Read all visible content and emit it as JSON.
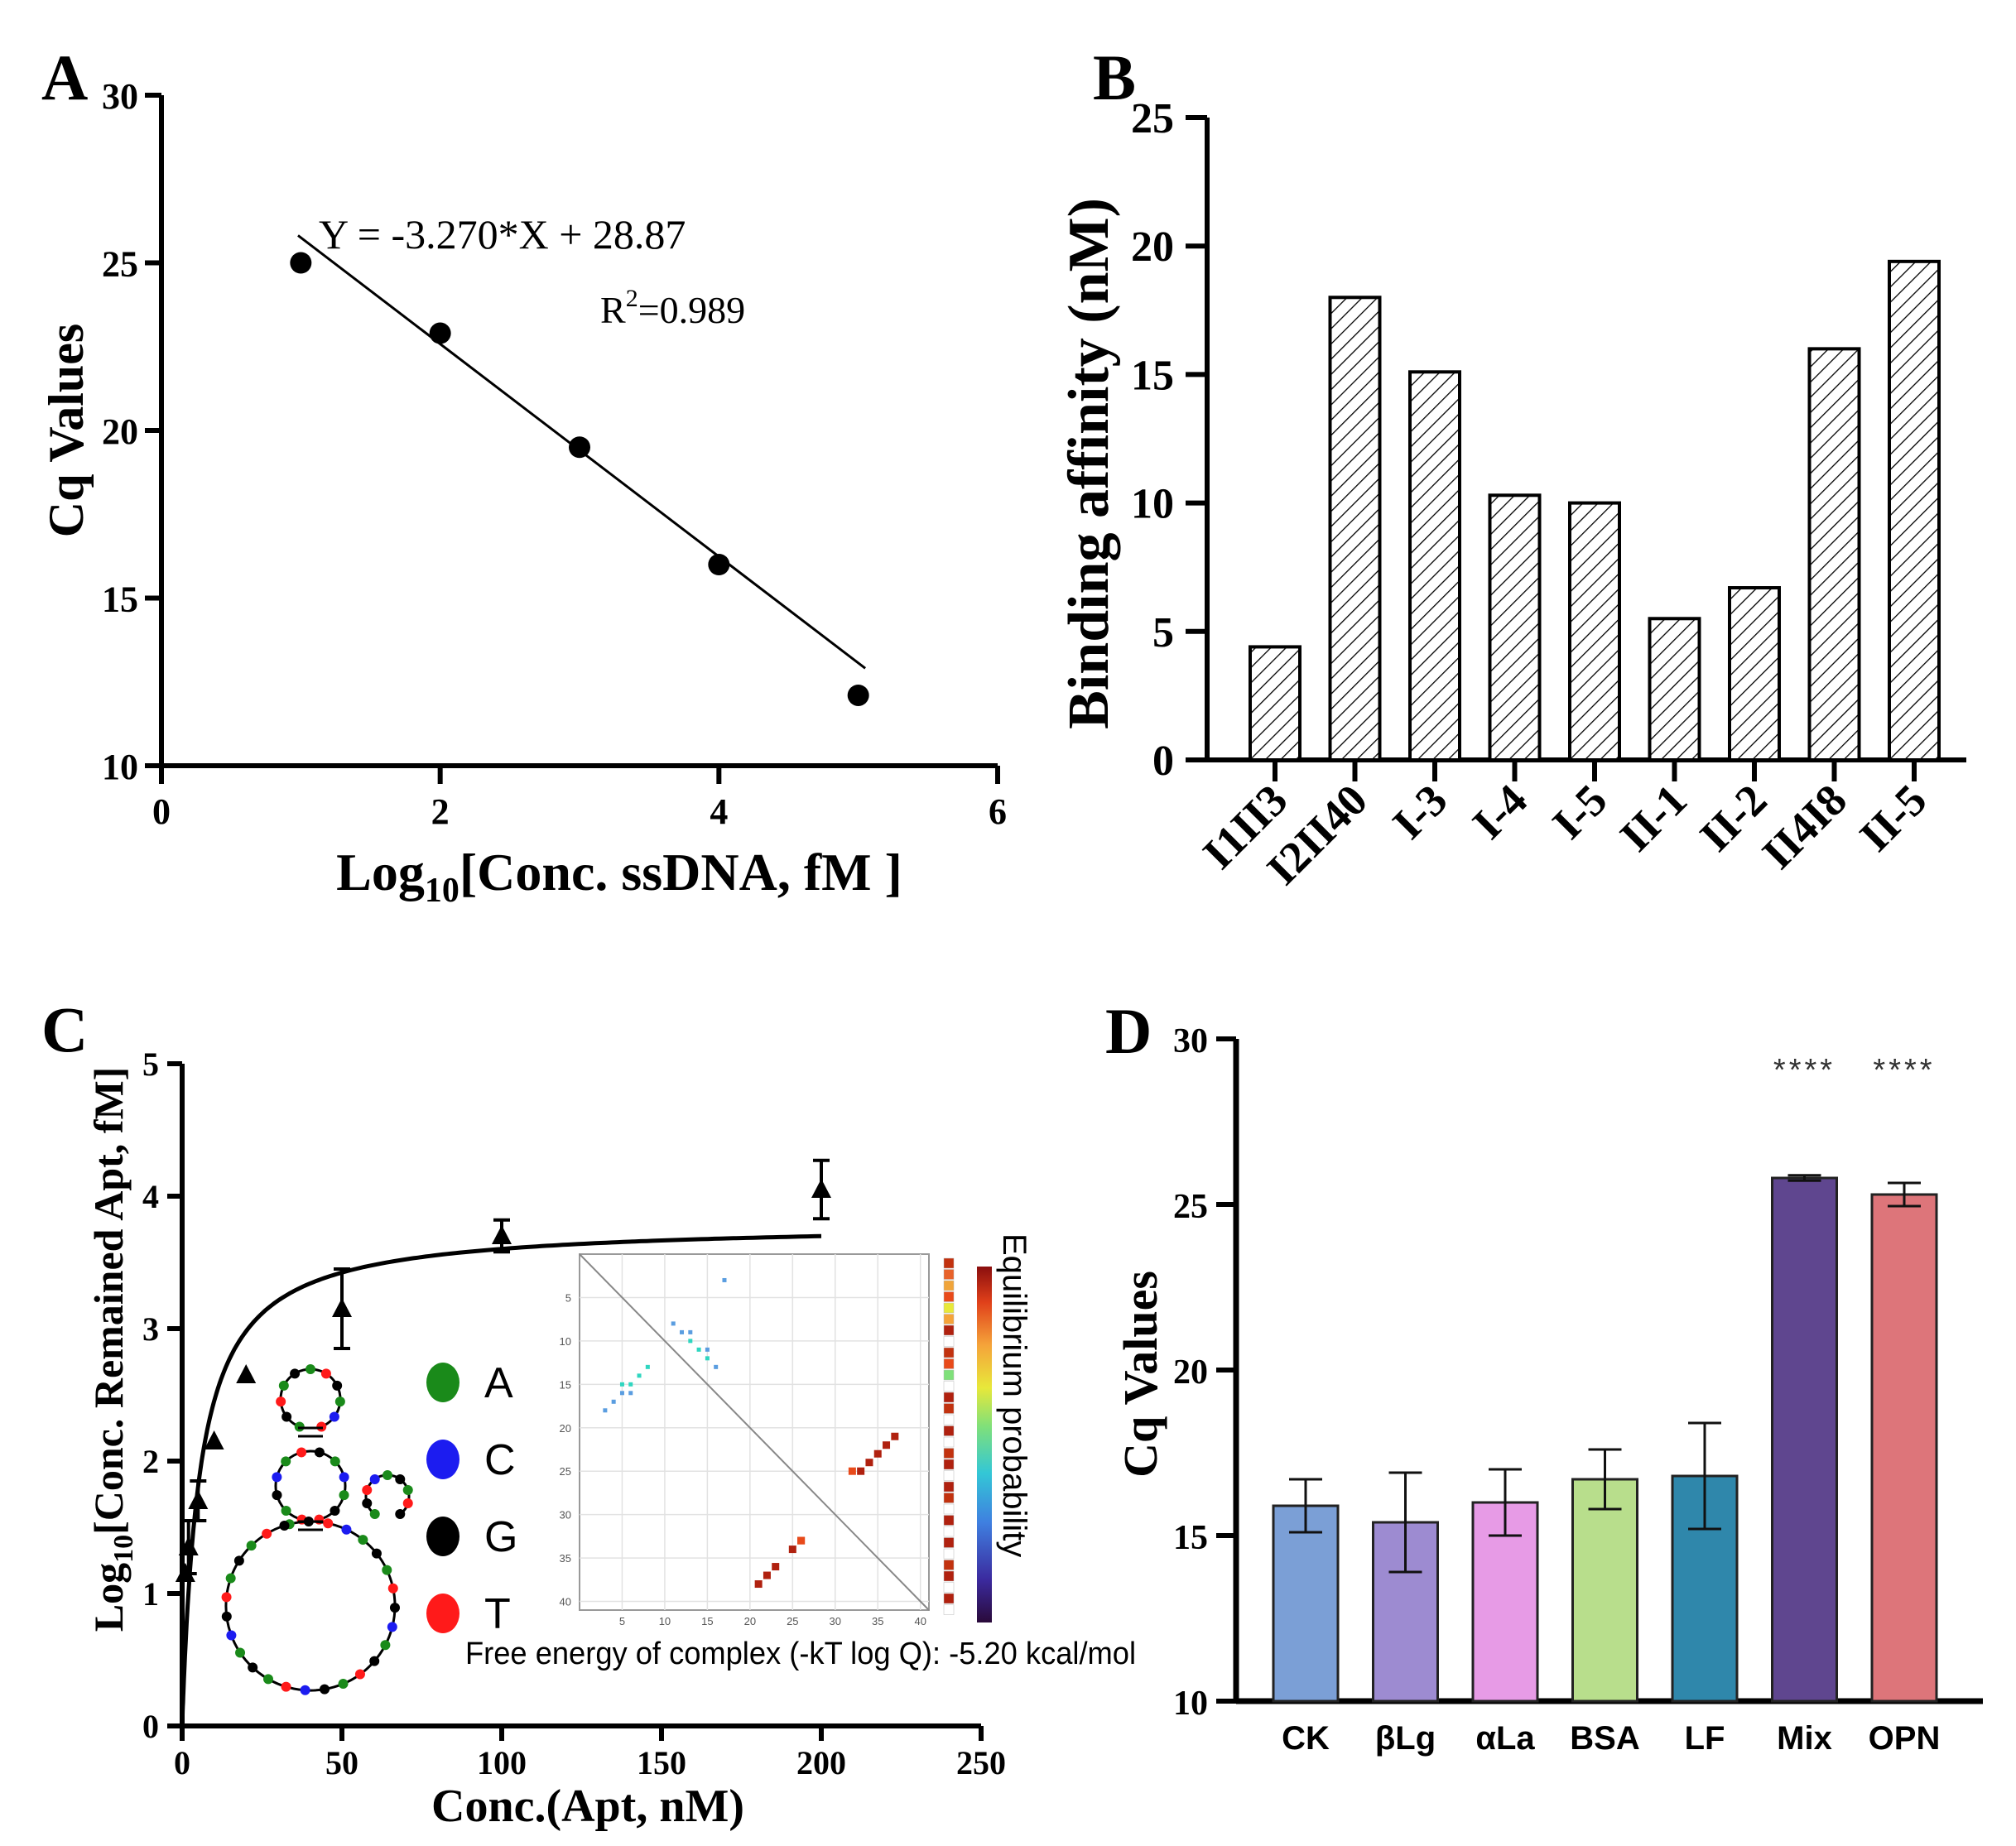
{
  "colors": {
    "axis": "#000000",
    "a_nuc": "#1a8a1a",
    "c_nuc": "#1c1cf0",
    "g_nuc": "#000000",
    "t_nuc": "#ff1a1a",
    "bar_CK": "#7b9fd6",
    "bar_bLg": "#9d8bd1",
    "bar_aLa": "#e79be6",
    "bar_BSA": "#b8de8c",
    "bar_LF": "#2f87ab",
    "bar_Mix": "#5f468f",
    "bar_OPN": "#dd757a",
    "dot_teal": "#2fd6c0",
    "dot_blue": "#5a9de0",
    "dot_red": "#b0210f",
    "dot_orange": "#e84a1a"
  },
  "chart_data": [
    {
      "panel": "A",
      "type": "scatter",
      "x": [
        1,
        2,
        3,
        4,
        5
      ],
      "y": [
        25,
        22.9,
        19.5,
        16,
        12.1
      ],
      "fit": {
        "slope": -3.27,
        "intercept": 28.87,
        "x_range": [
          1,
          5
        ]
      },
      "equation": "Y = -3.270*X + 28.87",
      "r2_prefix": "R",
      "r2_sup": "2",
      "r2_value": "=0.989",
      "xlabel_main": "Log",
      "xlabel_sub": "10",
      "xlabel_rest": "[Conc. ssDNA, fM ]",
      "ylabel": "Cq Values",
      "xlim": [
        0,
        6
      ],
      "ylim": [
        10,
        30
      ],
      "xticks": [
        "0",
        "2",
        "4",
        "6"
      ],
      "yticks": [
        "10",
        "15",
        "20",
        "25",
        "30"
      ]
    },
    {
      "panel": "B",
      "type": "bar",
      "categories": [
        "I1II3",
        "I2II40",
        "I-3",
        "I-4",
        "I-5",
        "II-1",
        "II-2",
        "II4I8",
        "II-5"
      ],
      "values": [
        4.4,
        18.0,
        15.1,
        10.3,
        10.0,
        5.5,
        6.7,
        16.0,
        19.4
      ],
      "ylabel": "Binding affinity (nM)",
      "ylim": [
        0,
        25
      ],
      "yticks": [
        "0",
        "5",
        "10",
        "15",
        "20",
        "25"
      ]
    },
    {
      "panel": "C",
      "type": "scatter",
      "x": [
        1,
        2,
        5,
        10,
        20,
        50,
        100,
        200
      ],
      "y": [
        1.15,
        1.35,
        1.7,
        2.15,
        2.65,
        3.15,
        3.7,
        4.05
      ],
      "errors": [
        0,
        0.2,
        0.15,
        0,
        0,
        0.3,
        0.12,
        0.22
      ],
      "fit": {
        "bmax": 3.8,
        "kd": 5.5
      },
      "xlabel": "Conc.(Apt, nM)",
      "ylabel_main": "Log",
      "ylabel_sub": "10",
      "ylabel_rest": "[Conc. Remained Apt, fM]",
      "xlim": [
        0,
        250
      ],
      "ylim": [
        0,
        5
      ],
      "xticks": [
        "0",
        "50",
        "100",
        "150",
        "200",
        "250"
      ],
      "yticks": [
        "0",
        "1",
        "2",
        "3",
        "4",
        "5"
      ],
      "legend": [
        "A",
        "C",
        "G",
        "T"
      ],
      "inset": {
        "axis_ticks": [
          "5",
          "10",
          "15",
          "20",
          "25",
          "30",
          "35",
          "40"
        ],
        "colorbar_label": "Equilibrium probability",
        "energy_text": "Free energy of complex (-kT log Q): -5.20 kcal/mol"
      }
    },
    {
      "panel": "D",
      "type": "bar",
      "categories": [
        "CK",
        "βLg",
        "αLa",
        "BSA",
        "LF",
        "Mix",
        "OPN"
      ],
      "values": [
        15.9,
        15.4,
        16.0,
        16.7,
        16.8,
        25.8,
        25.3
      ],
      "errors": [
        0.8,
        1.5,
        1.0,
        0.9,
        1.6,
        0.08,
        0.35
      ],
      "significance": [
        "",
        "",
        "",
        "",
        "",
        "****",
        "****"
      ],
      "ylabel": "Cq Values",
      "ylim": [
        10,
        30
      ],
      "yticks": [
        "10",
        "15",
        "20",
        "25",
        "30"
      ]
    }
  ],
  "panels": {
    "a": "A",
    "b": "B",
    "c": "C",
    "d": "D"
  }
}
